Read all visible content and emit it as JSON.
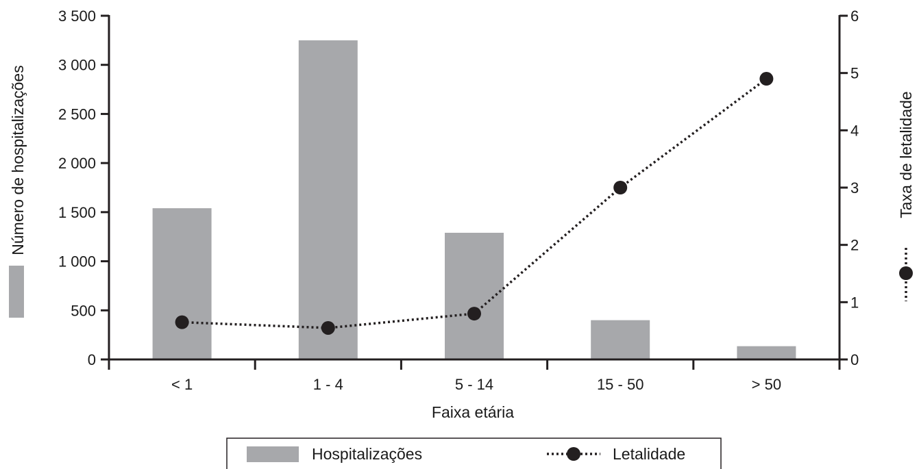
{
  "chart_data": {
    "type": "bar",
    "categories": [
      "< 1",
      "1 - 4",
      "5 - 14",
      "15 - 50",
      "> 50"
    ],
    "series": [
      {
        "name": "Hospitalizações",
        "type": "bar",
        "axis": "left",
        "values": [
          1540,
          3250,
          1290,
          400,
          135
        ],
        "color": "#a7a8ab"
      },
      {
        "name": "Letalidade",
        "type": "line",
        "axis": "right",
        "values": [
          0.65,
          0.55,
          0.8,
          3.0,
          4.9
        ],
        "color": "#231f20",
        "line_style": "dotted",
        "marker": "circle"
      }
    ],
    "xlabel": "Faixa etária",
    "ylabel": "Número de hospitalizações",
    "ylabel_right": "Taxa de letalidade",
    "ylim": [
      0,
      3500
    ],
    "ylim_right": [
      0,
      6
    ],
    "yticks": [
      0,
      500,
      1000,
      1500,
      2000,
      2500,
      3000,
      3500
    ],
    "yticks_labels": [
      "0",
      "500",
      "1 000",
      "1 500",
      "2 000",
      "2 500",
      "3 000",
      "3 500"
    ],
    "yticks_right": [
      "0",
      "1",
      "2",
      "3",
      "4",
      "5",
      "6"
    ],
    "grid": false,
    "legend": {
      "position": "bottom-center",
      "items": [
        "Hospitalizações",
        "Letalidade"
      ]
    }
  }
}
